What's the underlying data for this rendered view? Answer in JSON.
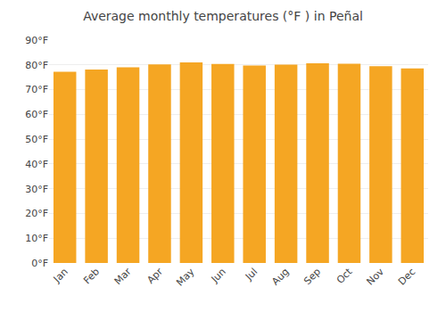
{
  "chart_data": {
    "type": "bar",
    "title": "Average monthly temperatures (°F ) in Peñal",
    "categories": [
      "Jan",
      "Feb",
      "Mar",
      "Apr",
      "May",
      "Jun",
      "Jul",
      "Aug",
      "Sep",
      "Oct",
      "Nov",
      "Dec"
    ],
    "values": [
      77.2,
      78.1,
      79.0,
      80.2,
      81.0,
      80.4,
      79.7,
      80.1,
      80.6,
      80.5,
      79.5,
      78.6
    ],
    "color": "#F5A623",
    "ylim": [
      0,
      90
    ],
    "yticks": [
      {
        "value": 0,
        "label": "0°F"
      },
      {
        "value": 10,
        "label": "10°F"
      },
      {
        "value": 20,
        "label": "20°F"
      },
      {
        "value": 30,
        "label": "30°F"
      },
      {
        "value": 40,
        "label": "40°F"
      },
      {
        "value": 50,
        "label": "50°F"
      },
      {
        "value": 60,
        "label": "60°F"
      },
      {
        "value": 70,
        "label": "70°F"
      },
      {
        "value": 80,
        "label": "80°F"
      },
      {
        "value": 90,
        "label": "90°F"
      }
    ],
    "grid": true
  }
}
